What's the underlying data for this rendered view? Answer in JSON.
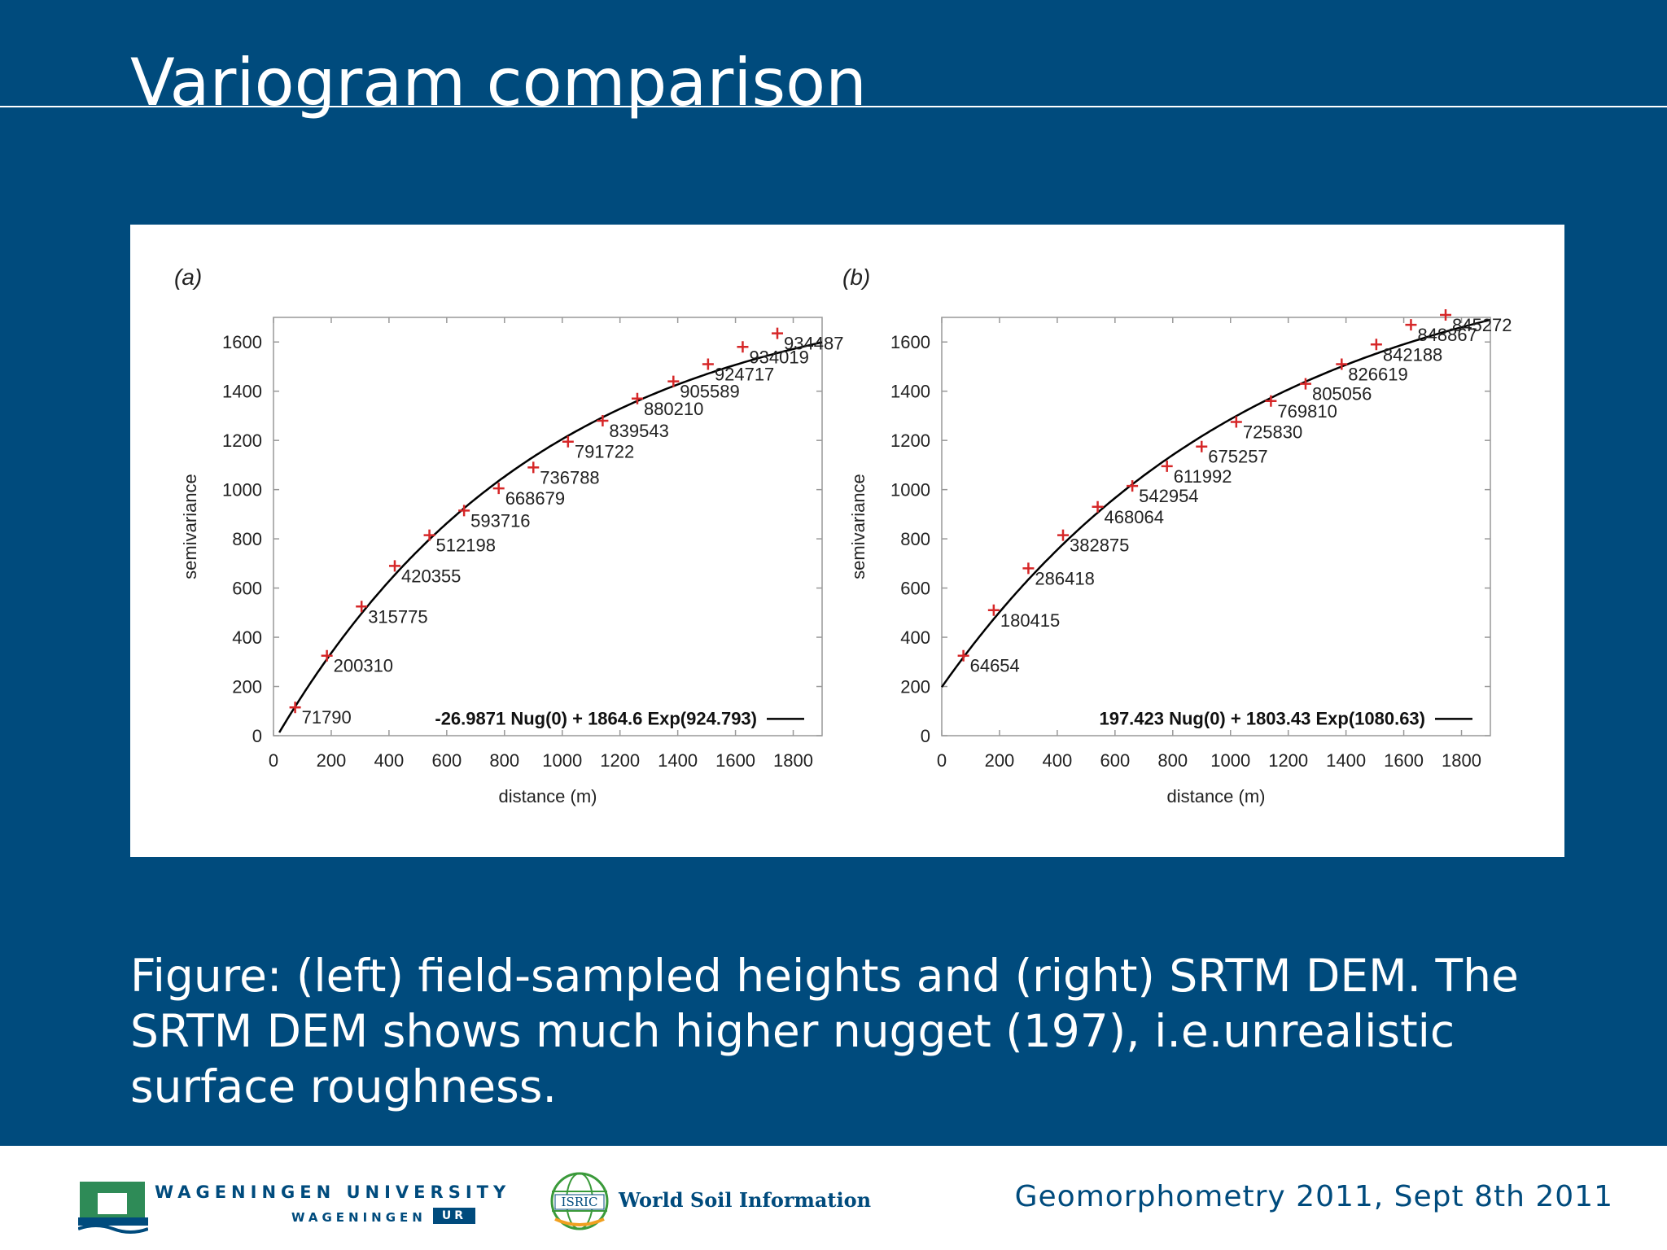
{
  "slide": {
    "title": "Variogram comparison",
    "caption": "Figure: (left) field-sampled heights and (right) SRTM DEM. The SRTM DEM shows much higher nugget (197), i.e.unrealistic surface roughness."
  },
  "footer": {
    "wur_name": "WAGENINGEN UNIVERSITY",
    "wur_sub": "WAGENINGEN",
    "wur_ur": "UR",
    "isric_badge": "ISRIC",
    "isric_name": "World Soil Information",
    "conference": "Geomorphometry 2011, Sept 8th 2011"
  },
  "colors": {
    "background": "#004b7d",
    "marker": "#d62728",
    "curve": "#000000"
  },
  "chart_data": [
    {
      "type": "scatter",
      "panel_label": "(a)",
      "xlabel": "distance  (m)",
      "ylabel": "semivariance",
      "xlim": [
        0,
        1900
      ],
      "ylim": [
        0,
        1700
      ],
      "xticks": [
        0,
        200,
        400,
        600,
        800,
        1000,
        1200,
        1400,
        1600,
        1800
      ],
      "yticks": [
        0,
        200,
        400,
        600,
        800,
        1000,
        1200,
        1400,
        1600
      ],
      "model": {
        "nugget": -26.9871,
        "sill": 1864.6,
        "range": 924.793,
        "label": "-26.9871 Nug(0) + 1864.6 Exp(924.793)"
      },
      "points": [
        {
          "x": 75,
          "y": 115,
          "label": "71790"
        },
        {
          "x": 185,
          "y": 325,
          "label": "200310"
        },
        {
          "x": 305,
          "y": 525,
          "label": "315775"
        },
        {
          "x": 420,
          "y": 690,
          "label": "420355"
        },
        {
          "x": 540,
          "y": 815,
          "label": "512198"
        },
        {
          "x": 660,
          "y": 915,
          "label": "593716"
        },
        {
          "x": 780,
          "y": 1005,
          "label": "668679"
        },
        {
          "x": 900,
          "y": 1090,
          "label": "736788"
        },
        {
          "x": 1020,
          "y": 1195,
          "label": "791722"
        },
        {
          "x": 1140,
          "y": 1280,
          "label": "839543"
        },
        {
          "x": 1260,
          "y": 1370,
          "label": "880210"
        },
        {
          "x": 1385,
          "y": 1440,
          "label": "905589"
        },
        {
          "x": 1505,
          "y": 1510,
          "label": "924717"
        },
        {
          "x": 1625,
          "y": 1580,
          "label": "934019"
        },
        {
          "x": 1745,
          "y": 1635,
          "label": "934487"
        }
      ]
    },
    {
      "type": "scatter",
      "panel_label": "(b)",
      "xlabel": "distance  (m)",
      "ylabel": "semivariance",
      "xlim": [
        0,
        1900
      ],
      "ylim": [
        0,
        1700
      ],
      "xticks": [
        0,
        200,
        400,
        600,
        800,
        1000,
        1200,
        1400,
        1600,
        1800
      ],
      "yticks": [
        0,
        200,
        400,
        600,
        800,
        1000,
        1200,
        1400,
        1600
      ],
      "model": {
        "nugget": 197.423,
        "sill": 1803.43,
        "range": 1080.63,
        "label": "197.423 Nug(0) + 1803.43 Exp(1080.63)"
      },
      "points": [
        {
          "x": 75,
          "y": 325,
          "label": "64654"
        },
        {
          "x": 180,
          "y": 510,
          "label": "180415"
        },
        {
          "x": 300,
          "y": 680,
          "label": "286418"
        },
        {
          "x": 420,
          "y": 815,
          "label": "382875"
        },
        {
          "x": 540,
          "y": 930,
          "label": "468064"
        },
        {
          "x": 660,
          "y": 1015,
          "label": "542954"
        },
        {
          "x": 780,
          "y": 1095,
          "label": "611992"
        },
        {
          "x": 900,
          "y": 1175,
          "label": "675257"
        },
        {
          "x": 1020,
          "y": 1275,
          "label": "725830"
        },
        {
          "x": 1140,
          "y": 1360,
          "label": "769810"
        },
        {
          "x": 1260,
          "y": 1430,
          "label": "805056"
        },
        {
          "x": 1385,
          "y": 1510,
          "label": "826619"
        },
        {
          "x": 1505,
          "y": 1590,
          "label": "842188"
        },
        {
          "x": 1625,
          "y": 1670,
          "label": "848867"
        },
        {
          "x": 1745,
          "y": 1710,
          "label": "845272"
        }
      ]
    }
  ]
}
